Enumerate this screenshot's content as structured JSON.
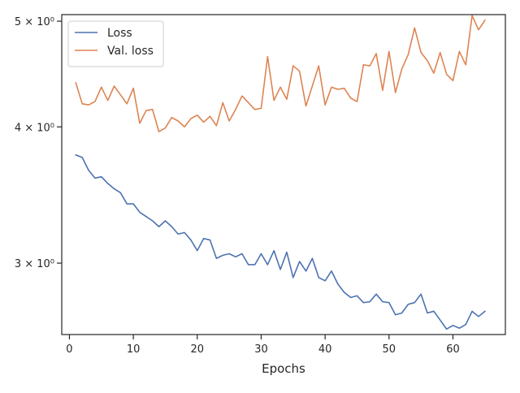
{
  "chart_data": {
    "type": "line",
    "title": "",
    "xlabel": "Epochs",
    "ylabel": "",
    "xlim": [
      -1.2,
      68.2
    ],
    "ylim": [
      2.58,
      5.07
    ],
    "yscale": "log",
    "grid": false,
    "legend_position": "top-left",
    "x_ticks": [
      {
        "value": 0,
        "label": "0"
      },
      {
        "value": 10,
        "label": "10"
      },
      {
        "value": 20,
        "label": "20"
      },
      {
        "value": 30,
        "label": "30"
      },
      {
        "value": 40,
        "label": "40"
      },
      {
        "value": 50,
        "label": "50"
      },
      {
        "value": 60,
        "label": "60"
      }
    ],
    "y_ticks": [
      {
        "value": 3,
        "label": "3 × 10⁰"
      },
      {
        "value": 4,
        "label": "4 × 10⁰"
      },
      {
        "value": 5,
        "label": "5 × 10⁰"
      }
    ],
    "x": [
      1,
      2,
      3,
      4,
      5,
      6,
      7,
      8,
      9,
      10,
      11,
      12,
      13,
      14,
      15,
      16,
      17,
      18,
      19,
      20,
      21,
      22,
      23,
      24,
      25,
      26,
      27,
      28,
      29,
      30,
      31,
      32,
      33,
      34,
      35,
      36,
      37,
      38,
      39,
      40,
      41,
      42,
      43,
      44,
      45,
      46,
      47,
      48,
      49,
      50,
      51,
      52,
      53,
      54,
      55,
      56,
      57,
      58,
      59,
      60,
      61,
      62,
      63,
      64,
      65
    ],
    "series": [
      {
        "name": "Loss",
        "color": "#4c72b0",
        "values": [
          3.77,
          3.75,
          3.65,
          3.59,
          3.6,
          3.55,
          3.51,
          3.48,
          3.4,
          3.4,
          3.34,
          3.31,
          3.28,
          3.24,
          3.28,
          3.24,
          3.19,
          3.2,
          3.15,
          3.08,
          3.16,
          3.15,
          3.03,
          3.05,
          3.06,
          3.04,
          3.06,
          2.99,
          2.99,
          3.06,
          2.99,
          3.08,
          2.96,
          3.07,
          2.91,
          3.01,
          2.95,
          3.03,
          2.91,
          2.89,
          2.95,
          2.87,
          2.82,
          2.79,
          2.8,
          2.76,
          2.765,
          2.81,
          2.765,
          2.76,
          2.69,
          2.7,
          2.75,
          2.76,
          2.81,
          2.7,
          2.71,
          2.66,
          2.61,
          2.63,
          2.615,
          2.635,
          2.71,
          2.68,
          2.71
        ]
      },
      {
        "name": "Val. loss",
        "color": "#dd8452",
        "values": [
          4.39,
          4.2,
          4.19,
          4.22,
          4.35,
          4.23,
          4.36,
          4.28,
          4.2,
          4.34,
          4.03,
          4.14,
          4.15,
          3.96,
          3.99,
          4.08,
          4.05,
          4.0,
          4.07,
          4.1,
          4.04,
          4.09,
          4.01,
          4.21,
          4.05,
          4.15,
          4.27,
          4.21,
          4.15,
          4.16,
          4.64,
          4.23,
          4.35,
          4.24,
          4.55,
          4.5,
          4.18,
          4.36,
          4.55,
          4.19,
          4.35,
          4.33,
          4.34,
          4.25,
          4.22,
          4.56,
          4.55,
          4.67,
          4.32,
          4.69,
          4.3,
          4.52,
          4.66,
          4.93,
          4.68,
          4.6,
          4.48,
          4.68,
          4.47,
          4.41,
          4.69,
          4.56,
          5.06,
          4.91,
          5.01
        ]
      }
    ]
  }
}
